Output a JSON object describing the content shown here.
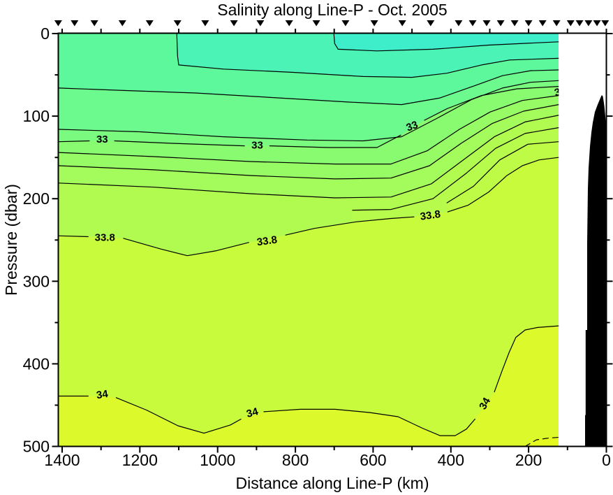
{
  "title": "Salinity along Line-P - Oct. 2005",
  "chart_data": {
    "type": "filled-contour-section",
    "title": "Salinity along Line-P - Oct. 2005",
    "xlabel": "Distance along Line-P (km)",
    "ylabel": "Pressure (dbar)",
    "x_axis": {
      "min": 0,
      "max": 1400,
      "reversed": true,
      "units": "km",
      "major": [
        {
          "km": 1400,
          "label": "1400"
        },
        {
          "km": 1200,
          "label": "1200"
        },
        {
          "km": 1000,
          "label": "1000"
        },
        {
          "km": 800,
          "label": "800"
        },
        {
          "km": 600,
          "label": "600"
        },
        {
          "km": 400,
          "label": "400"
        },
        {
          "km": 200,
          "label": "200"
        },
        {
          "km": 0,
          "label": "0"
        }
      ],
      "minor": [
        1300,
        1100,
        900,
        700,
        500,
        300,
        100
      ]
    },
    "y_axis": {
      "min": 0,
      "max": 500,
      "units": "dbar",
      "major": [
        {
          "dbar": 0,
          "label": "0"
        },
        {
          "dbar": 100,
          "label": "100"
        },
        {
          "dbar": 200,
          "label": "200"
        },
        {
          "dbar": 300,
          "label": "300"
        },
        {
          "dbar": 400,
          "label": "400"
        },
        {
          "dbar": 500,
          "label": "500"
        }
      ],
      "minor": [
        50,
        150,
        250,
        350,
        450
      ]
    },
    "data_edge_km": 123,
    "surface_fill": "#5DF89C",
    "frame_color": "#000000",
    "station_km": [
      1410,
      1368,
      1317,
      1245,
      1175,
      1103,
      1032,
      958,
      890,
      816,
      746,
      671,
      597,
      525,
      452,
      380,
      344,
      308,
      272,
      236,
      200,
      164,
      128,
      92,
      69,
      46,
      24,
      3
    ],
    "seafloor": [
      [
        54.8,
        500
      ],
      [
        54.8,
        462
      ],
      [
        53.4,
        462
      ],
      [
        53.4,
        359
      ],
      [
        49.4,
        359
      ],
      [
        49.4,
        254
      ],
      [
        47.6,
        188
      ],
      [
        45.8,
        163
      ],
      [
        42.2,
        137
      ],
      [
        38.6,
        120
      ],
      [
        35,
        108
      ],
      [
        29.6,
        95
      ],
      [
        22.4,
        86
      ],
      [
        17,
        80
      ],
      [
        13.5,
        76
      ],
      [
        11.7,
        74.5
      ],
      [
        9,
        76
      ],
      [
        6.3,
        84
      ],
      [
        4.5,
        91
      ],
      [
        2.7,
        100
      ],
      [
        0.9,
        112
      ],
      [
        0.9,
        500
      ]
    ],
    "contours": [
      {
        "id": "surface-inner",
        "mode": "above",
        "fill": "#4BF3B7",
        "segments": [
          [
            [
              1105,
              0
            ],
            [
              1103,
              27
            ],
            [
              1100,
              38
            ],
            [
              985,
              43
            ],
            [
              805,
              47
            ],
            [
              626,
              52
            ],
            [
              500,
              53
            ],
            [
              410,
              48
            ],
            [
              321,
              38
            ],
            [
              249,
              32
            ],
            [
              123,
              30
            ]
          ]
        ]
      },
      {
        "id": "surface-innermost",
        "mode": "above",
        "fill": "#3EEECB",
        "segments": [
          [
            [
              701,
              0
            ],
            [
              699,
              12
            ],
            [
              690,
              19
            ],
            [
              590,
              21
            ],
            [
              446,
              19
            ],
            [
              303,
              14
            ],
            [
              123,
              10
            ]
          ]
        ]
      },
      {
        "id": "upper-1",
        "mode": "below",
        "fill": "#6CFA8E",
        "segments": [
          [
            [
              1409,
              66
            ],
            [
              1236,
              69
            ],
            [
              1057,
              72
            ],
            [
              841,
              78
            ],
            [
              662,
              83
            ],
            [
              527,
              86
            ],
            [
              428,
              78
            ],
            [
              338,
              63
            ],
            [
              267,
              51
            ],
            [
              195,
              45
            ],
            [
              123,
              44
            ]
          ]
        ]
      },
      {
        "id": "upper-2",
        "mode": "below",
        "fill": "#7AFB7F",
        "segments": [
          [
            [
              1409,
              116
            ],
            [
              1200,
              119
            ],
            [
              985,
              125
            ],
            [
              769,
              129
            ],
            [
              626,
              130
            ],
            [
              527,
              125
            ],
            [
              437,
              103
            ],
            [
              347,
              80
            ],
            [
              267,
              66
            ],
            [
              195,
              59
            ],
            [
              123,
              57
            ]
          ]
        ]
      },
      {
        "id": "contour-33",
        "level": "33",
        "mode": "below",
        "fill": "#89FB71",
        "segments": [
          [
            [
              1409,
              131
            ],
            [
              1330,
              130
            ]
          ],
          [
            [
              1265,
              130
            ],
            [
              1111,
              133
            ],
            [
              931,
              136
            ]
          ],
          [
            [
              866,
              136
            ],
            [
              716,
              138
            ],
            [
              590,
              138
            ],
            [
              529,
              123
            ]
          ],
          [
            [
              468,
              105
            ],
            [
              410,
              91
            ],
            [
              321,
              75
            ],
            [
              231,
              67
            ],
            [
              123,
              64
            ]
          ]
        ],
        "labels": [
          {
            "t": "33",
            "km": 1297,
            "dbar": 128,
            "rot": 0
          },
          {
            "t": "33",
            "km": 898,
            "dbar": 135,
            "rot": 0
          },
          {
            "t": "33",
            "km": 500,
            "dbar": 112,
            "rot": -20
          }
        ]
      },
      {
        "id": "upper-3",
        "mode": "below",
        "fill": "#97FB66",
        "segments": [
          [
            [
              1409,
              144
            ],
            [
              1164,
              149
            ],
            [
              913,
              155
            ],
            [
              698,
              158
            ],
            [
              554,
              158
            ],
            [
              461,
              142
            ],
            [
              378,
              116
            ],
            [
              299,
              95
            ],
            [
              216,
              81
            ],
            [
              123,
              75
            ]
          ]
        ],
        "labels": [
          {
            "t": "3",
            "km": 126,
            "dbar": 71,
            "rot": -15
          }
        ]
      },
      {
        "id": "upper-4",
        "mode": "below",
        "fill": "#A4FB5C",
        "segments": [
          [
            [
              1409,
              160
            ],
            [
              1164,
              165
            ],
            [
              913,
              172
            ],
            [
              698,
              176
            ],
            [
              554,
              175
            ],
            [
              455,
              160
            ],
            [
              374,
              133
            ],
            [
              294,
              109
            ],
            [
              213,
              94
            ],
            [
              123,
              86
            ]
          ]
        ]
      },
      {
        "id": "upper-5",
        "mode": "below",
        "fill": "#B1FB51",
        "segments": [
          [
            [
              1409,
              181
            ],
            [
              1164,
              186
            ],
            [
              913,
              194
            ],
            [
              698,
              199
            ],
            [
              554,
              198
            ],
            [
              450,
              182
            ],
            [
              365,
              152
            ],
            [
              288,
              125
            ],
            [
              209,
              107
            ],
            [
              123,
              99
            ]
          ]
        ]
      },
      {
        "id": "coastal-1",
        "mode": "below",
        "fill": "#B7FB4C",
        "segments": [
          [
            [
              653,
              214
            ],
            [
              554,
              213
            ],
            [
              446,
              200
            ],
            [
              360,
              169
            ],
            [
              285,
              139
            ],
            [
              209,
              121
            ],
            [
              123,
              114
            ]
          ]
        ]
      },
      {
        "id": "coastal-2",
        "mode": "below",
        "fill": "#BDFB46",
        "segments": [
          [
            [
              410,
              205
            ],
            [
              342,
              185
            ],
            [
              274,
              153
            ],
            [
              202,
              134
            ],
            [
              123,
              131
            ]
          ]
        ]
      },
      {
        "id": "contour-33.8",
        "level": "33.8",
        "mode": "below",
        "fill": "#C7FB3B",
        "segments": [
          [
            [
              1409,
              245
            ],
            [
              1333,
              246
            ]
          ],
          [
            [
              1242,
              248
            ],
            [
              1146,
              261
            ],
            [
              1078,
              269
            ],
            [
              1003,
              263
            ],
            [
              920,
              253
            ]
          ],
          [
            [
              825,
              244
            ],
            [
              751,
              236
            ],
            [
              644,
              228
            ],
            [
              554,
              224
            ],
            [
              495,
              222
            ]
          ],
          [
            [
              408,
              216
            ],
            [
              356,
              208
            ],
            [
              303,
              192
            ],
            [
              256,
              172
            ],
            [
              216,
              160
            ],
            [
              173,
              153
            ],
            [
              123,
              150
            ]
          ]
        ],
        "labels": [
          {
            "t": "33.8",
            "km": 1290,
            "dbar": 247,
            "rot": 0
          },
          {
            "t": "33.8",
            "km": 873,
            "dbar": 251,
            "rot": -8
          },
          {
            "t": "33.8",
            "km": 453,
            "dbar": 220,
            "rot": -8
          }
        ]
      },
      {
        "id": "contour-34",
        "level": "34",
        "mode": "below",
        "fill": "#DBF92B",
        "segments": [
          [
            [
              1409,
              439
            ],
            [
              1333,
              439
            ]
          ],
          [
            [
              1261,
              441
            ],
            [
              1183,
              456
            ],
            [
              1102,
              475
            ],
            [
              1035,
              484
            ],
            [
              967,
              474
            ],
            [
              940,
              467
            ]
          ],
          [
            [
              881,
              458
            ],
            [
              787,
              455
            ],
            [
              698,
              455
            ],
            [
              608,
              459
            ],
            [
              536,
              464
            ],
            [
              473,
              478
            ],
            [
              428,
              487
            ],
            [
              389,
              487
            ],
            [
              360,
              479
            ],
            [
              338,
              467
            ]
          ],
          [
            [
              288,
              434
            ],
            [
              268,
              408
            ],
            [
              250,
              386
            ],
            [
              233,
              368
            ],
            [
              209,
              359
            ],
            [
              177,
              356
            ],
            [
              123,
              354
            ]
          ]
        ],
        "labels": [
          {
            "t": "34",
            "km": 1297,
            "dbar": 437,
            "rot": -8
          },
          {
            "t": "34",
            "km": 911,
            "dbar": 459,
            "rot": -15
          },
          {
            "t": "34",
            "km": 313,
            "dbar": 448,
            "rot": -60
          }
        ]
      },
      {
        "id": "contour-deep-dashed",
        "mode": "below",
        "fill": "#E6F91E",
        "dashed": true,
        "segments": [
          [
            [
              209,
              500
            ],
            [
              180,
              492
            ],
            [
              150,
              490
            ],
            [
              123,
              489
            ]
          ]
        ]
      }
    ]
  }
}
